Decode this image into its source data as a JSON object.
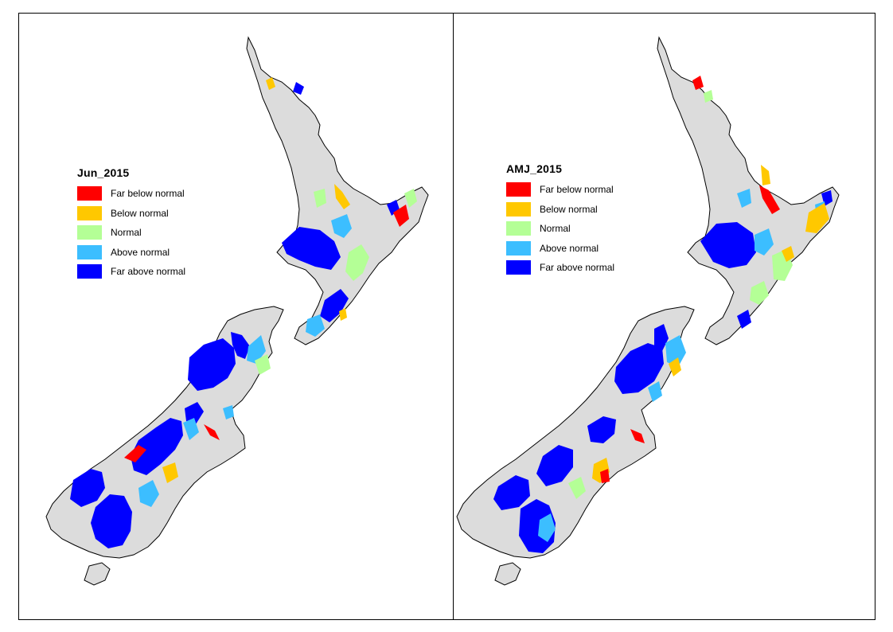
{
  "panels": [
    {
      "legend_title": "Jun_2015",
      "legend": [
        {
          "label": "Far below normal",
          "color": "#ff0000"
        },
        {
          "label": "Below normal",
          "color": "#ffc800"
        },
        {
          "label": "Normal",
          "color": "#b4ff96"
        },
        {
          "label": "Above normal",
          "color": "#3cbeff"
        },
        {
          "label": "Far above normal",
          "color": "#0000ff"
        }
      ]
    },
    {
      "legend_title": "AMJ_2015",
      "legend": [
        {
          "label": "Far below normal",
          "color": "#ff0000"
        },
        {
          "label": "Below normal",
          "color": "#ffc800"
        },
        {
          "label": "Normal",
          "color": "#b4ff96"
        },
        {
          "label": "Above normal",
          "color": "#3cbeff"
        },
        {
          "label": "Far above normal",
          "color": "#0000ff"
        }
      ]
    }
  ],
  "land_color": "#dcdcdc",
  "coast_color": "#000000"
}
